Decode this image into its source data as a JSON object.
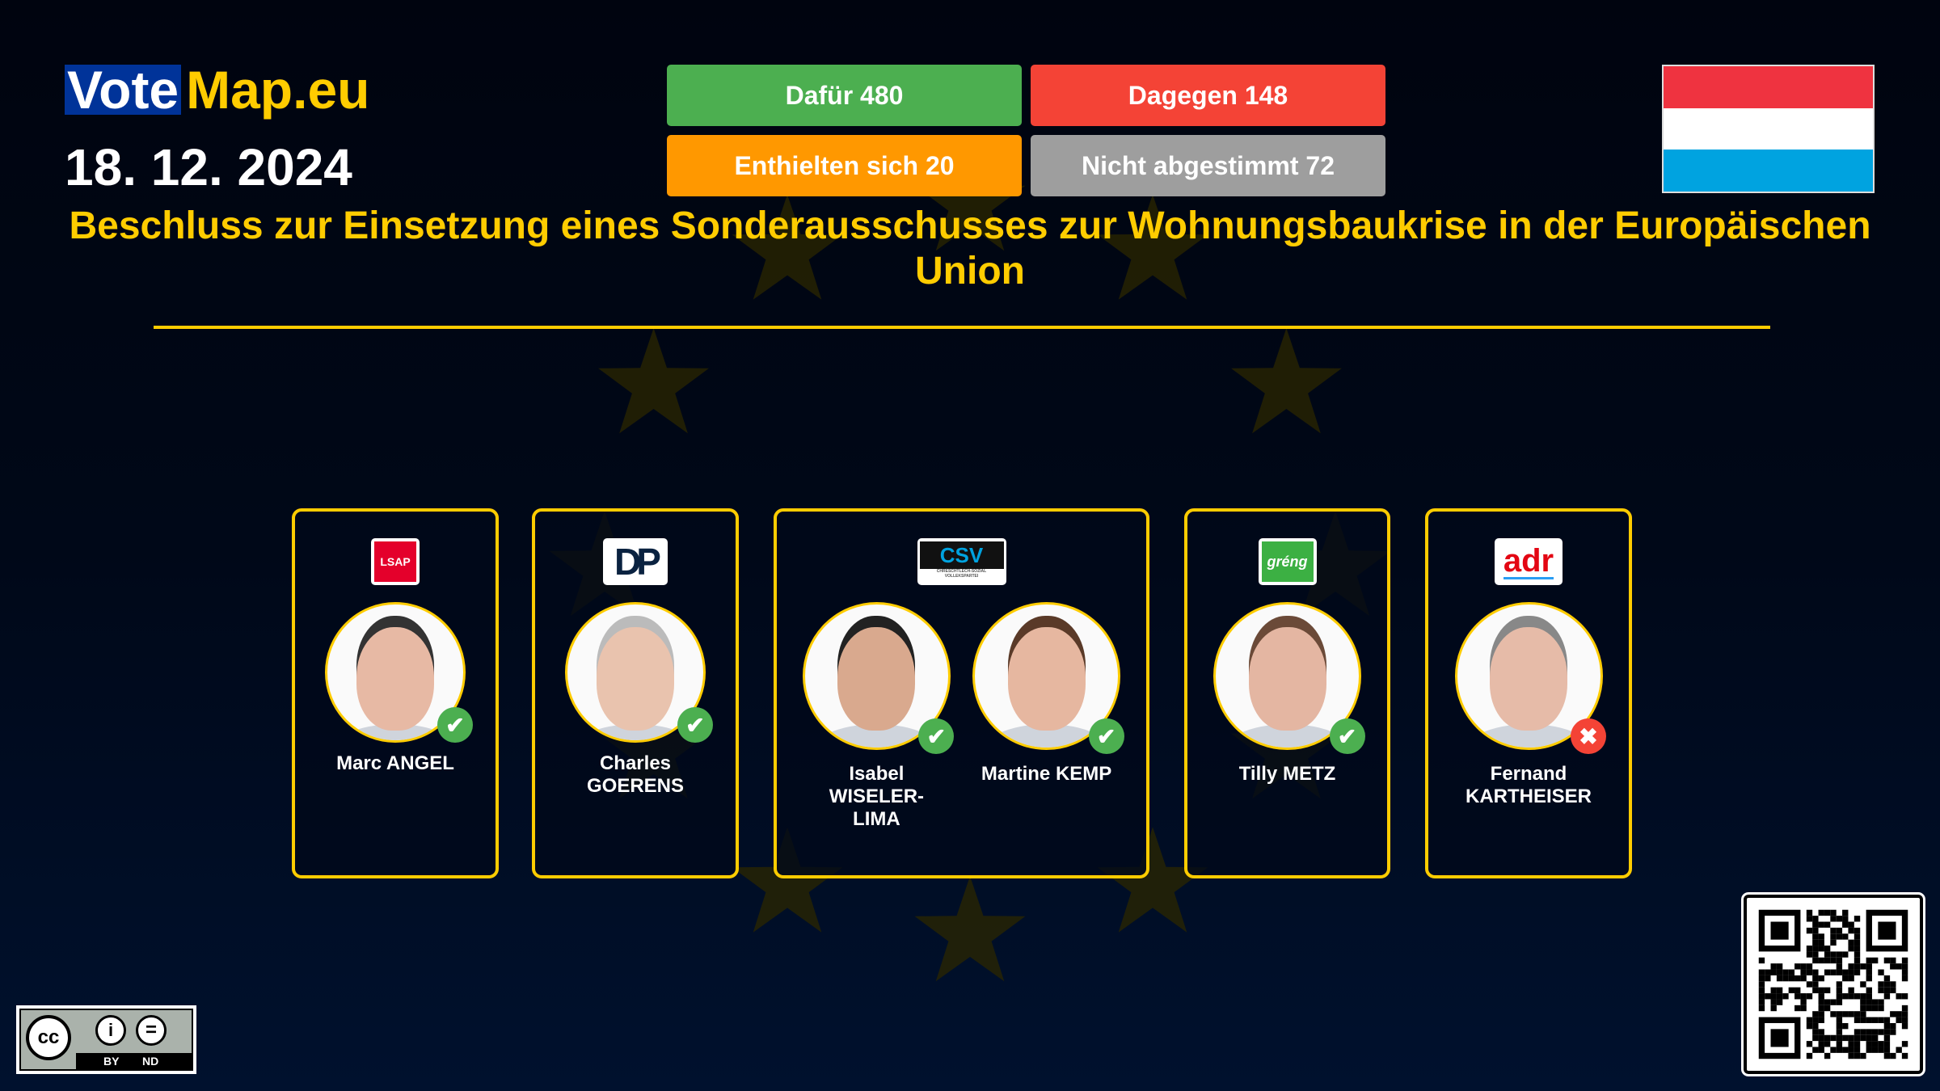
{
  "brand": {
    "vote": "Vote",
    "map": "Map.eu"
  },
  "date": "18. 12. 2024",
  "results": [
    {
      "label": "Dafür 480",
      "color": "#4caf50"
    },
    {
      "label": "Dagegen 148",
      "color": "#f44336"
    },
    {
      "label": "Enthielten sich 20",
      "color": "#ff9800"
    },
    {
      "label": "Nicht abgestimmt 72",
      "color": "#9e9e9e"
    }
  ],
  "flag": {
    "country": "Luxembourg",
    "colors": [
      "#ef3340",
      "#ffffff",
      "#00a3e0"
    ]
  },
  "title": "Beschluss zur Einsetzung eines Sonderausschusses zur Wohnungsbaukrise in der Europäischen Union",
  "parties": [
    {
      "logo": "LSAP",
      "members": [
        {
          "name": "Marc ANGEL",
          "vote": "for"
        }
      ]
    },
    {
      "logo": "DP",
      "members": [
        {
          "name": "Charles GOERENS",
          "vote": "for"
        }
      ]
    },
    {
      "logo": "CSV",
      "members": [
        {
          "name": "Isabel WISELER-LIMA",
          "vote": "for"
        },
        {
          "name": "Martine KEMP",
          "vote": "for"
        }
      ]
    },
    {
      "logo": "gréng",
      "members": [
        {
          "name": "Tilly METZ",
          "vote": "for"
        }
      ]
    },
    {
      "logo": "adr",
      "members": [
        {
          "name": "Fernand KARTHEISER",
          "vote": "against"
        }
      ]
    }
  ],
  "license": {
    "by": "BY",
    "nd": "ND"
  },
  "colors": {
    "accent": "#ffcc00",
    "for": "#4caf50",
    "against": "#f44336"
  }
}
